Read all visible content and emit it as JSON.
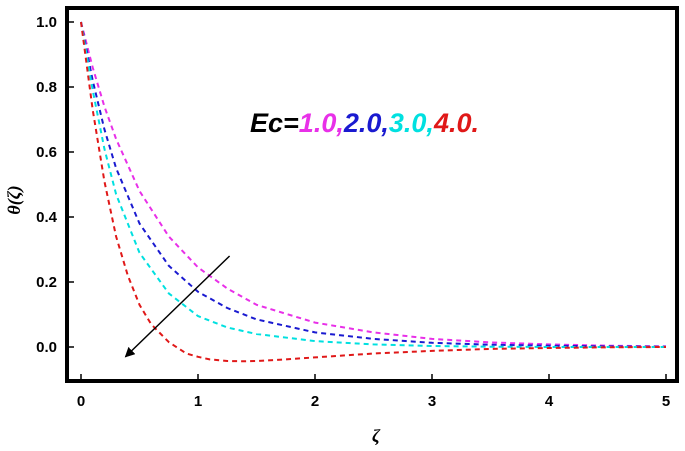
{
  "chart_data": {
    "type": "line",
    "xlabel": "ζ",
    "ylabel": "θ(ζ)",
    "xlim": [
      0,
      5
    ],
    "ylim": [
      -0.1,
      1.02
    ],
    "xticks": [
      "0",
      "1",
      "2",
      "3",
      "4",
      "5"
    ],
    "yticks": [
      "0.0",
      "0.2",
      "0.4",
      "0.6",
      "0.8",
      "1.0"
    ],
    "grid": false,
    "line_style": "dashed",
    "annotation": {
      "prefix": "Ec=",
      "parts": [
        {
          "text": "1.0,",
          "color": "#e830e8"
        },
        {
          "text": "2.0,",
          "color": "#1a1ad0"
        },
        {
          "text": "3.0,",
          "color": "#00e0e0"
        },
        {
          "text": "4.0.",
          "color": "#e01818"
        }
      ]
    },
    "arrow": {
      "from": [
        1.27,
        0.28
      ],
      "to": [
        0.38,
        -0.03
      ]
    },
    "series": [
      {
        "color": "#e830e8",
        "x": [
          0,
          0.1,
          0.2,
          0.3,
          0.5,
          0.75,
          1.0,
          1.25,
          1.5,
          2.0,
          2.5,
          3.0,
          3.5,
          4.0,
          4.5,
          5.0
        ],
        "y": [
          1.0,
          0.86,
          0.74,
          0.64,
          0.48,
          0.34,
          0.245,
          0.18,
          0.13,
          0.075,
          0.045,
          0.025,
          0.014,
          0.008,
          0.004,
          0.002
        ]
      },
      {
        "color": "#1a1ad0",
        "x": [
          0,
          0.1,
          0.2,
          0.3,
          0.5,
          0.75,
          1.0,
          1.25,
          1.5,
          2.0,
          2.5,
          3.0,
          3.5,
          4.0,
          4.5,
          5.0
        ],
        "y": [
          1.0,
          0.82,
          0.67,
          0.55,
          0.38,
          0.25,
          0.17,
          0.12,
          0.085,
          0.045,
          0.025,
          0.013,
          0.007,
          0.004,
          0.002,
          0.001
        ]
      },
      {
        "color": "#00e0e0",
        "x": [
          0,
          0.1,
          0.2,
          0.3,
          0.5,
          0.75,
          1.0,
          1.25,
          1.5,
          2.0,
          2.5,
          3.0,
          3.5,
          4.0,
          4.5,
          5.0
        ],
        "y": [
          1.0,
          0.79,
          0.61,
          0.47,
          0.29,
          0.165,
          0.095,
          0.06,
          0.04,
          0.018,
          0.008,
          0.003,
          0.001,
          0.0,
          0.0,
          0.0
        ]
      },
      {
        "color": "#e01818",
        "x": [
          0,
          0.1,
          0.2,
          0.3,
          0.4,
          0.5,
          0.6,
          0.75,
          0.9,
          1.0,
          1.1,
          1.25,
          1.4,
          1.5,
          1.75,
          2.0,
          2.5,
          3.0,
          3.5,
          4.0,
          4.5,
          5.0
        ],
        "y": [
          1.0,
          0.73,
          0.51,
          0.34,
          0.22,
          0.13,
          0.07,
          0.015,
          -0.02,
          -0.03,
          -0.038,
          -0.043,
          -0.044,
          -0.043,
          -0.038,
          -0.032,
          -0.02,
          -0.012,
          -0.006,
          -0.003,
          -0.001,
          0.0
        ]
      }
    ]
  }
}
